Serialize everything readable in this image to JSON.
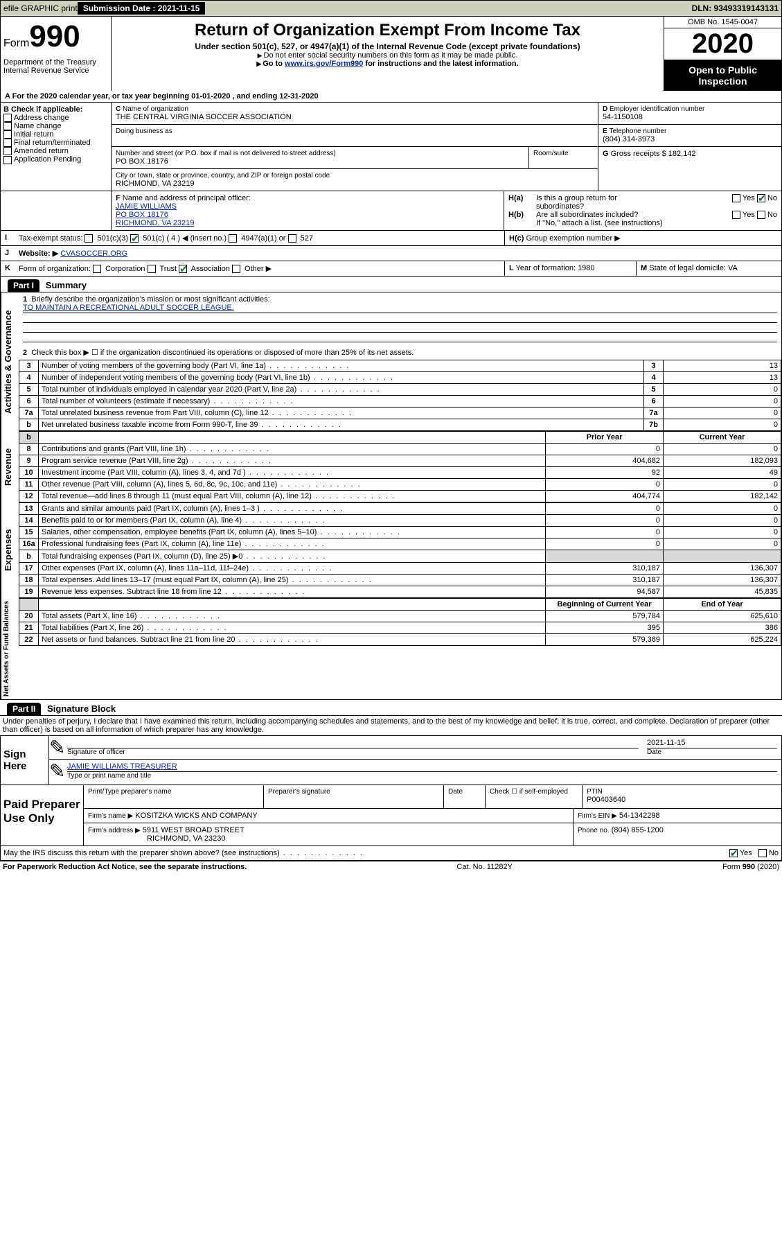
{
  "topbar": {
    "efile_label": "efile GRAPHIC print",
    "submission_label": "Submission Date : 2021-11-15",
    "dln_label": "DLN: 93493319143131"
  },
  "header": {
    "form_prefix": "Form",
    "form_number": "990",
    "dept": "Department of the Treasury\nInternal Revenue Service",
    "title": "Return of Organization Exempt From Income Tax",
    "subtitle": "Under section 501(c), 527, or 4947(a)(1) of the Internal Revenue Code (except private foundations)",
    "note1": "Do not enter social security numbers on this form as it may be made public.",
    "note2_pre": "Go to ",
    "note2_link": "www.irs.gov/Form990",
    "note2_post": " for instructions and the latest information.",
    "omb": "OMB No. 1545-0047",
    "year": "2020",
    "inspect": "Open to Public Inspection"
  },
  "lineA": "For the 2020 calendar year, or tax year beginning 01-01-2020     , and ending 12-31-2020",
  "boxB": {
    "title": "Check if applicable:",
    "items": [
      "Address change",
      "Name change",
      "Initial return",
      "Final return/terminated",
      "Amended return",
      "Application Pending"
    ]
  },
  "boxC": {
    "name_label": "Name of organization",
    "name": "THE CENTRAL VIRGINIA SOCCER ASSOCIATION",
    "dba_label": "Doing business as",
    "street_label": "Number and street (or P.O. box if mail is not delivered to street address)",
    "room_label": "Room/suite",
    "street": "PO BOX 18176",
    "city_label": "City or town, state or province, country, and ZIP or foreign postal code",
    "city": "RICHMOND, VA   23219"
  },
  "boxD": {
    "label": "Employer identification number",
    "value": "54-1150108"
  },
  "boxE": {
    "label": "Telephone number",
    "value": "(804) 314-3973"
  },
  "boxG": {
    "label": "Gross receipts $",
    "value": "182,142"
  },
  "boxF": {
    "label": "Name and address of principal officer:",
    "name": "JAMIE WILLIAMS",
    "street": "PO BOX 18176",
    "city": "RICHMOND, VA   23219"
  },
  "boxH": {
    "ha_label": "Is this a group return for",
    "ha_label2": "subordinates?",
    "hb_label": "Are all subordinates included?",
    "h_note": "If \"No,\" attach a list. (see instructions)",
    "hc_label": "Group exemption number ▶"
  },
  "boxI": {
    "label": "Tax-exempt status:",
    "opts": [
      "501(c)(3)",
      "501(c) ( 4 ) ◀ (insert no.)",
      "4947(a)(1) or",
      "527"
    ]
  },
  "boxJ": {
    "label": "Website: ▶",
    "value": "CVASOCCER.ORG"
  },
  "boxK": {
    "label": "Form of organization:",
    "opts": [
      "Corporation",
      "Trust",
      "Association",
      "Other ▶"
    ]
  },
  "boxL": {
    "label": "Year of formation:",
    "value": "1980"
  },
  "boxM": {
    "label": "State of legal domicile:",
    "value": "VA"
  },
  "part1": {
    "tab": "Part I",
    "title": "Summary",
    "line1_label": "Briefly describe the organization's mission or most significant activities:",
    "line1_value": "TO MAINTAIN A RECREATIONAL ADULT SOCCER LEAGUE.",
    "line2": "Check this box ▶ ☐  if the organization discontinued its operations or disposed of more than 25% of its net assets.",
    "gov_rows": [
      {
        "n": "3",
        "label": "Number of voting members of the governing body (Part VI, line 1a)",
        "v": "13"
      },
      {
        "n": "4",
        "label": "Number of independent voting members of the governing body (Part VI, line 1b)",
        "v": "13"
      },
      {
        "n": "5",
        "label": "Total number of individuals employed in calendar year 2020 (Part V, line 2a)",
        "v": "0"
      },
      {
        "n": "6",
        "label": "Total number of volunteers (estimate if necessary)",
        "v": "0"
      },
      {
        "n": "7a",
        "label": "Total unrelated business revenue from Part VIII, column (C), line 12",
        "v": "0"
      },
      {
        "n": "b",
        "label": "Net unrelated business taxable income from Form 990-T, line 39",
        "box": "7b",
        "v": "0"
      }
    ],
    "hdr_prior": "Prior Year",
    "hdr_curr": "Current Year",
    "rev_rows": [
      {
        "n": "8",
        "label": "Contributions and grants (Part VIII, line 1h)",
        "p": "0",
        "c": "0"
      },
      {
        "n": "9",
        "label": "Program service revenue (Part VIII, line 2g)",
        "p": "404,682",
        "c": "182,093"
      },
      {
        "n": "10",
        "label": "Investment income (Part VIII, column (A), lines 3, 4, and 7d )",
        "p": "92",
        "c": "49"
      },
      {
        "n": "11",
        "label": "Other revenue (Part VIII, column (A), lines 5, 6d, 8c, 9c, 10c, and 11e)",
        "p": "0",
        "c": "0"
      },
      {
        "n": "12",
        "label": "Total revenue—add lines 8 through 11 (must equal Part VIII, column (A), line 12)",
        "p": "404,774",
        "c": "182,142"
      }
    ],
    "exp_rows": [
      {
        "n": "13",
        "label": "Grants and similar amounts paid (Part IX, column (A), lines 1–3 )",
        "p": "0",
        "c": "0"
      },
      {
        "n": "14",
        "label": "Benefits paid to or for members (Part IX, column (A), line 4)",
        "p": "0",
        "c": "0"
      },
      {
        "n": "15",
        "label": "Salaries, other compensation, employee benefits (Part IX, column (A), lines 5–10)",
        "p": "0",
        "c": "0"
      },
      {
        "n": "16a",
        "label": "Professional fundraising fees (Part IX, column (A), line 11e)",
        "p": "0",
        "c": "0"
      },
      {
        "n": "b",
        "label": "Total fundraising expenses (Part IX, column (D), line 25) ▶0",
        "p": "",
        "c": "",
        "grey": true
      },
      {
        "n": "17",
        "label": "Other expenses (Part IX, column (A), lines 11a–11d, 11f–24e)",
        "p": "310,187",
        "c": "136,307"
      },
      {
        "n": "18",
        "label": "Total expenses. Add lines 13–17 (must equal Part IX, column (A), line 25)",
        "p": "310,187",
        "c": "136,307"
      },
      {
        "n": "19",
        "label": "Revenue less expenses. Subtract line 18 from line 12",
        "p": "94,587",
        "c": "45,835"
      }
    ],
    "hdr_beg": "Beginning of Current Year",
    "hdr_end": "End of Year",
    "net_rows": [
      {
        "n": "20",
        "label": "Total assets (Part X, line 16)",
        "p": "579,784",
        "c": "625,610"
      },
      {
        "n": "21",
        "label": "Total liabilities (Part X, line 26)",
        "p": "395",
        "c": "386"
      },
      {
        "n": "22",
        "label": "Net assets or fund balances. Subtract line 21 from line 20",
        "p": "579,389",
        "c": "625,224"
      }
    ],
    "vtabs": [
      "Activities & Governance",
      "Revenue",
      "Expenses",
      "Net Assets or Fund Balances"
    ]
  },
  "part2": {
    "tab": "Part II",
    "title": "Signature Block",
    "decl": "Under penalties of perjury, I declare that I have examined this return, including accompanying schedules and statements, and to the best of my knowledge and belief, it is true, correct, and complete. Declaration of preparer (other than officer) is based on all information of which preparer has any knowledge.",
    "sign_here": "Sign Here",
    "sig_officer": "Signature of officer",
    "date_label": "Date",
    "date_value": "2021-11-15",
    "typed": "JAMIE WILLIAMS  TREASURER",
    "typed_label": "Type or print name and title",
    "paid": "Paid Preparer Use Only",
    "prep_name_label": "Print/Type preparer's name",
    "prep_sig_label": "Preparer's signature",
    "check_self": "Check ☐ if self-employed",
    "ptin_label": "PTIN",
    "ptin": "P00403640",
    "firm_label": "Firm's name     ▶",
    "firm_name": "KOSITZKA WICKS AND COMPANY",
    "firm_ein_label": "Firm's EIN ▶",
    "firm_ein": "54-1342298",
    "firm_addr_label": "Firm's address ▶",
    "firm_addr1": "5911 WEST BROAD STREET",
    "firm_addr2": "RICHMOND, VA   23230",
    "phone_label": "Phone no.",
    "phone": "(804) 855-1200",
    "discuss": "May the IRS discuss this return with the preparer shown above? (see instructions)"
  },
  "footer": {
    "pra": "For Paperwork Reduction Act Notice, see the separate instructions.",
    "cat": "Cat. No. 11282Y",
    "formno": "Form 990 (2020)"
  },
  "yn": {
    "yes": "Yes",
    "no": "No"
  }
}
